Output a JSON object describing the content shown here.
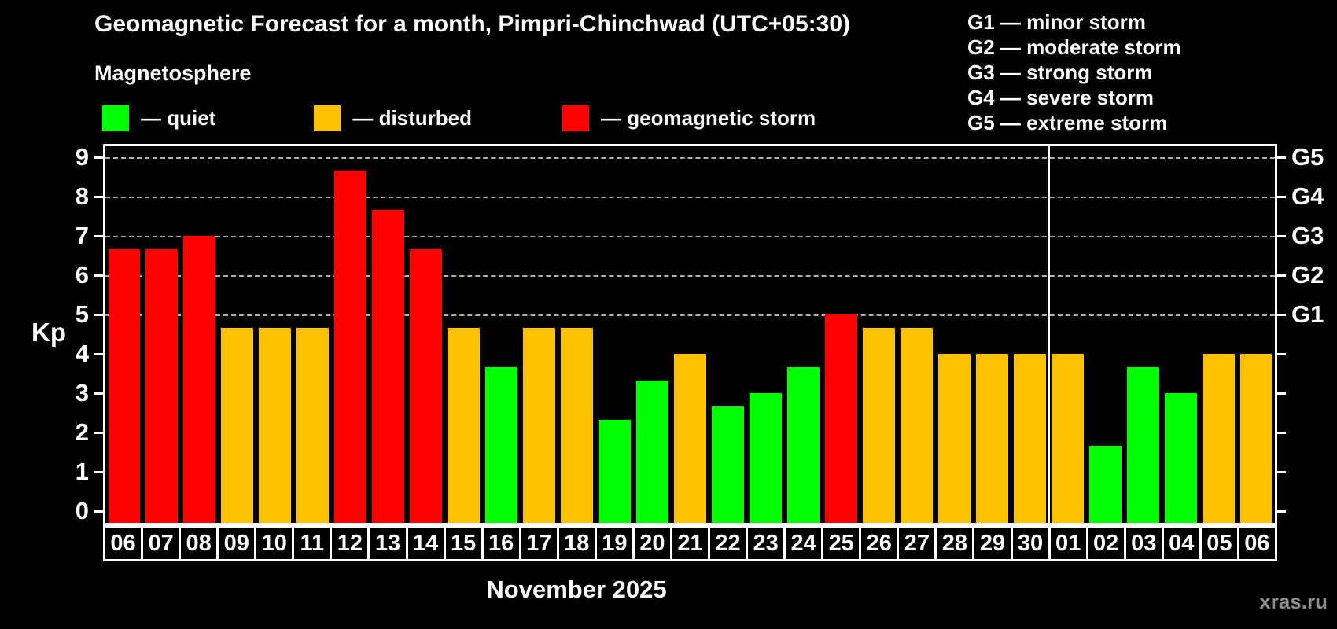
{
  "header": {
    "title": "Geomagnetic Forecast for a month, Pimpri-Chinchwad (UTC+05:30)",
    "subtitle": "Magnetosphere"
  },
  "legend": {
    "items": [
      {
        "label": "— quiet",
        "status": "quiet"
      },
      {
        "label": "— disturbed",
        "status": "disturbed"
      },
      {
        "label": "— geomagnetic storm",
        "status": "storm"
      }
    ]
  },
  "g_legend": {
    "items": [
      "G1 — minor storm",
      "G2 — moderate storm",
      "G3 — strong storm",
      "G4 — severe storm",
      "G5 — extreme storm"
    ]
  },
  "axis": {
    "ylabel": "Kp",
    "left_ticks": [
      0,
      1,
      2,
      3,
      4,
      5,
      6,
      7,
      8,
      9
    ],
    "right_labels": [
      {
        "kp": 5,
        "label": "G1"
      },
      {
        "kp": 6,
        "label": "G2"
      },
      {
        "kp": 7,
        "label": "G3"
      },
      {
        "kp": 8,
        "label": "G4"
      },
      {
        "kp": 9,
        "label": "G5"
      }
    ]
  },
  "footer": {
    "month_label": "November 2025",
    "watermark": "xras.ru"
  },
  "colors": {
    "quiet": "#00ff00",
    "disturbed": "#ffc000",
    "storm": "#ff0000",
    "grid": "#b0b0b0",
    "frame": "#ffffff",
    "text": "#ffffff",
    "background": "#000000",
    "watermark": "#8c8c8c"
  },
  "chart_data": {
    "type": "bar",
    "title": "Geomagnetic Forecast for a month, Pimpri-Chinchwad (UTC+05:30)",
    "ylabel": "Kp",
    "ylim": [
      -0.3,
      9.34
    ],
    "grid": "dashed horizontal at Kp 5-9 (G1-G5)",
    "gridlines_at": [
      5,
      6,
      7,
      8,
      9
    ],
    "categories": [
      "06",
      "07",
      "08",
      "09",
      "10",
      "11",
      "12",
      "13",
      "14",
      "15",
      "16",
      "17",
      "18",
      "19",
      "20",
      "21",
      "22",
      "23",
      "24",
      "25",
      "26",
      "27",
      "28",
      "29",
      "30",
      "01",
      "02",
      "03",
      "04",
      "05",
      "06"
    ],
    "values": [
      6.67,
      6.67,
      7.0,
      4.67,
      4.67,
      4.67,
      8.67,
      7.67,
      6.67,
      4.67,
      3.67,
      4.67,
      4.67,
      2.33,
      3.33,
      4.0,
      2.67,
      3.0,
      3.67,
      5.0,
      4.67,
      4.67,
      4.0,
      4.0,
      4.0,
      4.0,
      1.67,
      3.67,
      3.0,
      4.0,
      4.0
    ],
    "statuses": [
      "storm",
      "storm",
      "storm",
      "disturbed",
      "disturbed",
      "disturbed",
      "storm",
      "storm",
      "storm",
      "disturbed",
      "quiet",
      "disturbed",
      "disturbed",
      "quiet",
      "quiet",
      "disturbed",
      "quiet",
      "quiet",
      "quiet",
      "storm",
      "disturbed",
      "disturbed",
      "disturbed",
      "disturbed",
      "disturbed",
      "disturbed",
      "quiet",
      "quiet",
      "quiet",
      "disturbed",
      "disturbed"
    ],
    "month_separator_after_index": 24,
    "xlabel": "November 2025"
  }
}
